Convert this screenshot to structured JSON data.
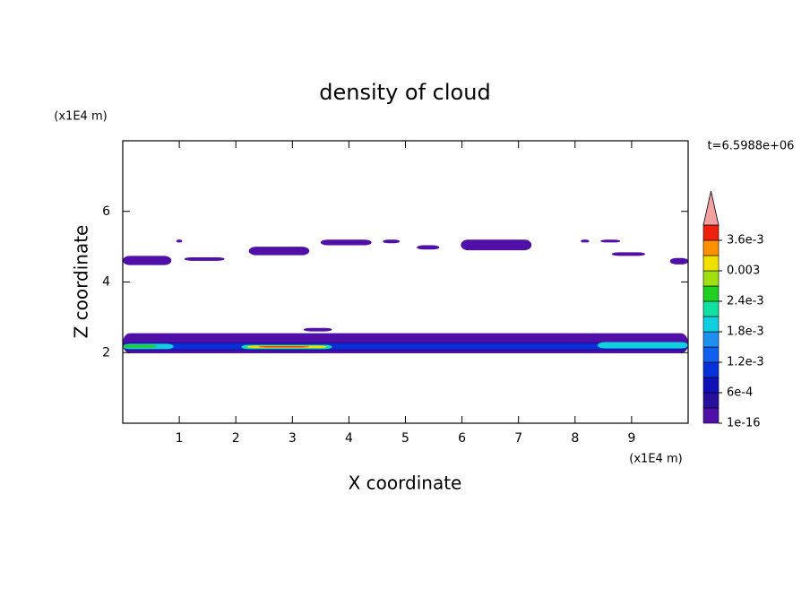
{
  "chart_data": {
    "type": "contour",
    "title": "density of cloud",
    "x_label": "X coordinate",
    "y_label": "Z coordinate",
    "x_unit": "(x1E4 m)",
    "y_unit": "(x1E4 m)",
    "annotation": "t=6.5988e+06",
    "xlim": [
      0,
      10
    ],
    "ylim": [
      0,
      8
    ],
    "xticks": [
      1,
      2,
      3,
      4,
      5,
      6,
      7,
      8,
      9
    ],
    "yticks": [
      2,
      4,
      6
    ],
    "colorbar": {
      "lim": [
        0,
        0.0039
      ],
      "ticks": [
        1e-16,
        {
          "value": 0.0006,
          "label": "6e-4"
        },
        {
          "value": 0.0012,
          "label": "1.2e-3"
        },
        {
          "value": 0.0018,
          "label": "1.8e-3"
        },
        {
          "value": 0.0024,
          "label": "2.4e-3"
        },
        0.003,
        {
          "value": 0.0036,
          "label": "3.6e-3"
        }
      ],
      "colors": [
        "#5010a8",
        "#28109c",
        "#1010b8",
        "#0830d8",
        "#1060f0",
        "#2090f0",
        "#10d0e0",
        "#10e0a0",
        "#20d020",
        "#a0e010",
        "#f0e000",
        "#ff9000",
        "#f02010"
      ],
      "extend_color": "#f4a0a0"
    },
    "regions": [
      {
        "x": [
          0,
          0.86
        ],
        "z": [
          4.48,
          4.74
        ],
        "value": 0.0001
      },
      {
        "x": [
          1.09,
          1.8
        ],
        "z": [
          4.6,
          4.7
        ],
        "value": 0.0001
      },
      {
        "x": [
          0.95,
          1.05
        ],
        "z": [
          5.12,
          5.2
        ],
        "value": 0.0001
      },
      {
        "x": [
          2.23,
          3.3
        ],
        "z": [
          4.76,
          5.0
        ],
        "value": 0.0001
      },
      {
        "x": [
          3.5,
          4.4
        ],
        "z": [
          5.04,
          5.2
        ],
        "value": 0.0001
      },
      {
        "x": [
          4.6,
          4.9
        ],
        "z": [
          5.1,
          5.2
        ],
        "value": 0.0001
      },
      {
        "x": [
          5.2,
          5.6
        ],
        "z": [
          4.92,
          5.04
        ],
        "value": 0.0001
      },
      {
        "x": [
          5.98,
          7.23
        ],
        "z": [
          4.9,
          5.2
        ],
        "value": 0.0001
      },
      {
        "x": [
          8.1,
          8.25
        ],
        "z": [
          5.12,
          5.2
        ],
        "value": 0.0001
      },
      {
        "x": [
          8.45,
          8.8
        ],
        "z": [
          5.12,
          5.2
        ],
        "value": 0.0001
      },
      {
        "x": [
          8.65,
          9.24
        ],
        "z": [
          4.74,
          4.84
        ],
        "value": 0.0001
      },
      {
        "x": [
          9.68,
          10
        ],
        "z": [
          4.5,
          4.68
        ],
        "value": 0.0001
      },
      {
        "x": [
          3.2,
          3.7
        ],
        "z": [
          2.6,
          2.7
        ],
        "value": 0.0001
      },
      {
        "x": [
          0,
          10
        ],
        "z": [
          1.98,
          2.55
        ],
        "value": 0.0001
      },
      {
        "x": [
          0,
          10
        ],
        "z": [
          2.05,
          2.3
        ],
        "value": 0.0005
      },
      {
        "x": [
          0,
          10
        ],
        "z": [
          2.1,
          2.25
        ],
        "value": 0.001
      },
      {
        "x": [
          0,
          0.9
        ],
        "z": [
          2.1,
          2.25
        ],
        "value": 0.0019
      },
      {
        "x": [
          8.4,
          10
        ],
        "z": [
          2.12,
          2.3
        ],
        "value": 0.0019
      },
      {
        "x": [
          2.1,
          3.7
        ],
        "z": [
          2.1,
          2.22
        ],
        "value": 0.0022
      },
      {
        "x": [
          0,
          0.6
        ],
        "z": [
          2.14,
          2.22
        ],
        "value": 0.0026
      },
      {
        "x": [
          2.2,
          3.6
        ],
        "z": [
          2.13,
          2.2
        ],
        "value": 0.003
      },
      {
        "x": [
          2.4,
          3.3
        ],
        "z": [
          2.15,
          2.18
        ],
        "value": 0.0038
      }
    ]
  }
}
